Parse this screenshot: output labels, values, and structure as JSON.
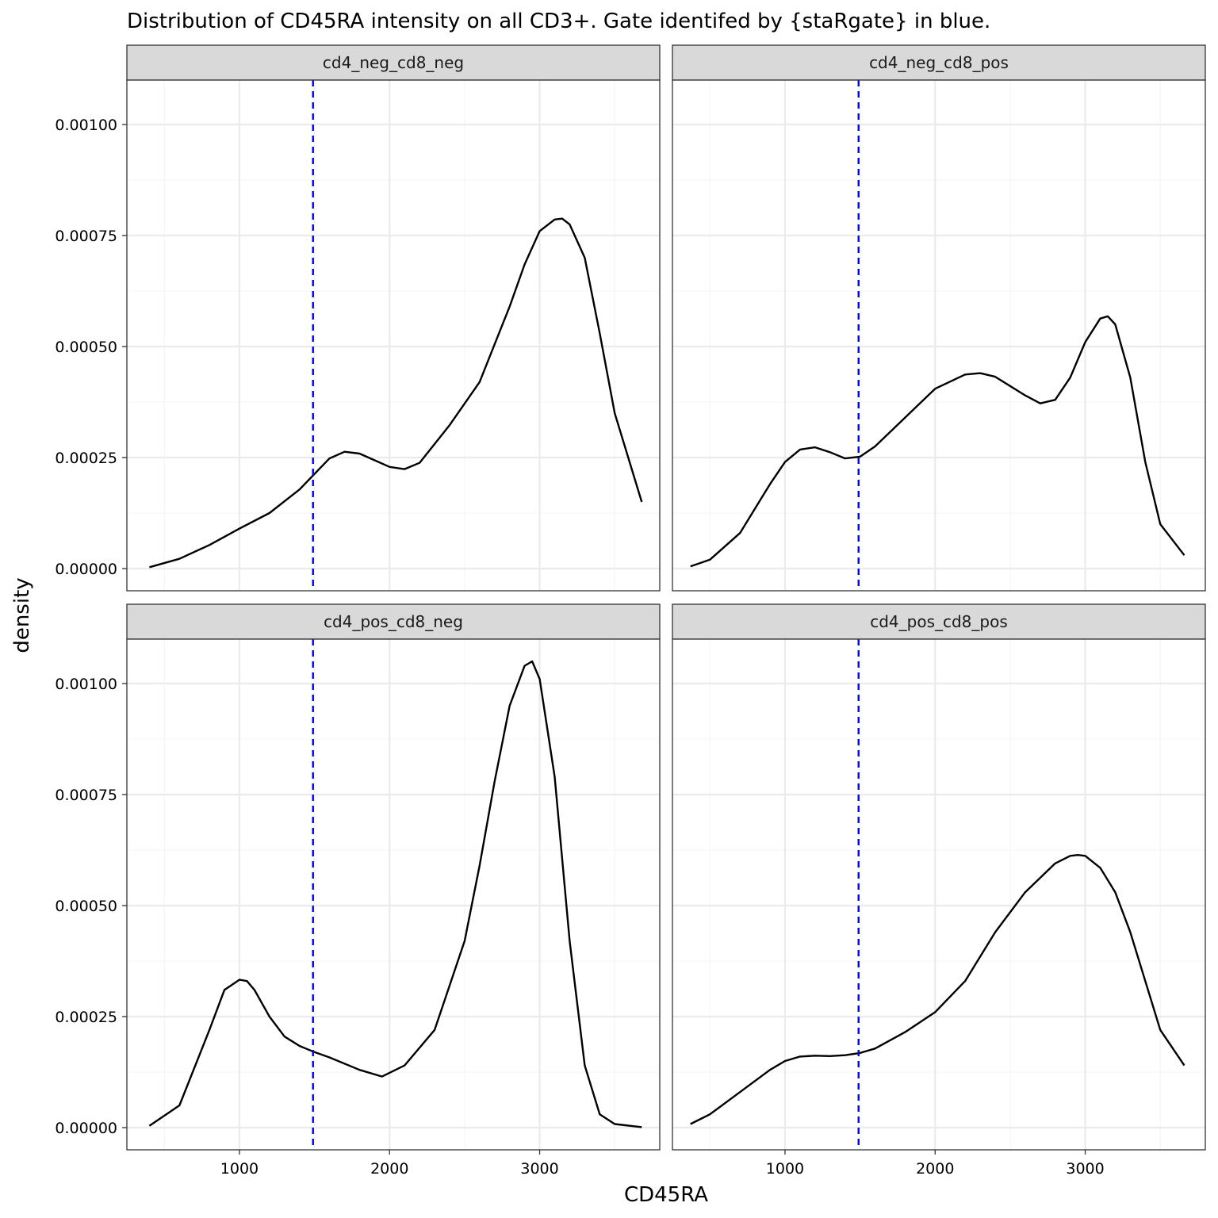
{
  "title": "Distribution of CD45RA intensity on all CD3+. Gate identifed by {staRgate} in blue.",
  "x_axis_label": "CD45RA",
  "y_axis_label": "density",
  "colors": {
    "density_line": "#000000",
    "gate_line": "#0000ff",
    "strip_fill": "#d9d9d9",
    "grid": "#ebebeb"
  },
  "chart_data": {
    "type": "line",
    "title": "Distribution of CD45RA intensity on all CD3+. Gate identifed by {staRgate} in blue.",
    "xlabel": "CD45RA",
    "ylabel": "density",
    "xlim": [
      250,
      3800
    ],
    "ylim": [
      -5e-05,
      0.0011
    ],
    "x_ticks": [
      1000,
      2000,
      3000
    ],
    "x_tick_labels": [
      "1000",
      "2000",
      "3000"
    ],
    "y_ticks": [
      0,
      0.00025,
      0.0005,
      0.00075,
      0.001
    ],
    "y_tick_labels": [
      "0.00000",
      "0.00025",
      "0.00050",
      "0.00075",
      "0.00100"
    ],
    "grid": true,
    "facets": [
      {
        "name": "cd4_neg_cd8_neg",
        "gate": 1490,
        "x": [
          400,
          600,
          800,
          1000,
          1200,
          1400,
          1600,
          1700,
          1800,
          1900,
          2000,
          2100,
          2200,
          2400,
          2600,
          2800,
          2900,
          3000,
          3100,
          3150,
          3200,
          3300,
          3400,
          3500,
          3680
        ],
        "y": [
          3e-06,
          2.2e-05,
          5.3e-05,
          9e-05,
          0.000125,
          0.000178,
          0.000248,
          0.000263,
          0.000259,
          0.000244,
          0.000229,
          0.000224,
          0.000238,
          0.000323,
          0.00042,
          0.00059,
          0.000685,
          0.00076,
          0.000786,
          0.000788,
          0.000775,
          0.0007,
          0.00053,
          0.00035,
          0.00015
        ]
      },
      {
        "name": "cd4_neg_cd8_pos",
        "gate": 1490,
        "x": [
          370,
          500,
          700,
          900,
          1000,
          1100,
          1200,
          1300,
          1400,
          1500,
          1600,
          1800,
          2000,
          2200,
          2300,
          2400,
          2600,
          2700,
          2800,
          2900,
          3000,
          3100,
          3150,
          3200,
          3300,
          3400,
          3500,
          3660
        ],
        "y": [
          5e-06,
          2e-05,
          8e-05,
          0.00019,
          0.00024,
          0.000268,
          0.000273,
          0.000262,
          0.000248,
          0.000252,
          0.000275,
          0.00034,
          0.000405,
          0.000437,
          0.00044,
          0.000432,
          0.00039,
          0.000372,
          0.00038,
          0.00043,
          0.00051,
          0.000563,
          0.000568,
          0.00055,
          0.00043,
          0.00024,
          0.0001,
          3e-05
        ]
      },
      {
        "name": "cd4_pos_cd8_neg",
        "gate": 1490,
        "x": [
          400,
          600,
          800,
          900,
          1000,
          1050,
          1100,
          1200,
          1300,
          1400,
          1500,
          1600,
          1800,
          1950,
          2100,
          2300,
          2500,
          2600,
          2700,
          2800,
          2900,
          2950,
          3000,
          3100,
          3200,
          3300,
          3400,
          3500,
          3680
        ],
        "y": [
          4e-06,
          5e-05,
          0.00022,
          0.00031,
          0.000333,
          0.00033,
          0.00031,
          0.00025,
          0.000205,
          0.000184,
          0.00017,
          0.000158,
          0.00013,
          0.000115,
          0.00014,
          0.00022,
          0.00042,
          0.00059,
          0.00078,
          0.00095,
          0.00104,
          0.00105,
          0.00101,
          0.00079,
          0.00042,
          0.00014,
          3e-05,
          8e-06,
          1e-06
        ]
      },
      {
        "name": "cd4_pos_cd8_pos",
        "gate": 1490,
        "x": [
          370,
          500,
          700,
          900,
          1000,
          1100,
          1200,
          1300,
          1400,
          1500,
          1600,
          1800,
          2000,
          2200,
          2400,
          2600,
          2800,
          2900,
          2950,
          3000,
          3100,
          3200,
          3300,
          3400,
          3500,
          3660
        ],
        "y": [
          8e-06,
          3e-05,
          8e-05,
          0.00013,
          0.00015,
          0.00016,
          0.000162,
          0.000161,
          0.000163,
          0.000168,
          0.000178,
          0.000215,
          0.00026,
          0.00033,
          0.00044,
          0.00053,
          0.000595,
          0.000612,
          0.000614,
          0.000612,
          0.000585,
          0.00053,
          0.00044,
          0.00033,
          0.00022,
          0.00014
        ]
      }
    ]
  }
}
